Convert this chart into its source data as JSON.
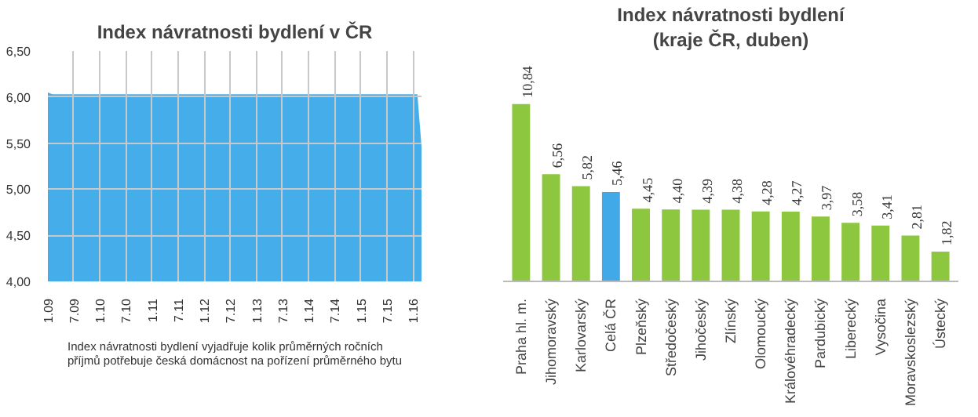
{
  "chart_data": [
    {
      "type": "area",
      "title": "Index návratnosti bydlení v ČR",
      "x": [
        "2009-01",
        "2009-02",
        "2016-02",
        "2016-03"
      ],
      "series": [
        {
          "color": "#45aeea",
          "values": [
            6.05,
            6.03,
            6.03,
            5.47
          ]
        }
      ],
      "xlim": [
        "2009-01",
        "2016-03"
      ],
      "xticks": [
        {
          "value": "2009-01",
          "label": "1.09"
        },
        {
          "value": "2009-07",
          "label": "7.09"
        },
        {
          "value": "2010-01",
          "label": "1.10"
        },
        {
          "value": "2010-07",
          "label": "7.10"
        },
        {
          "value": "2011-01",
          "label": "1.11"
        },
        {
          "value": "2011-07",
          "label": "7.11"
        },
        {
          "value": "2012-01",
          "label": "1.12"
        },
        {
          "value": "2012-07",
          "label": "7.12"
        },
        {
          "value": "2013-01",
          "label": "1.13"
        },
        {
          "value": "2013-07",
          "label": "7.13"
        },
        {
          "value": "2014-01",
          "label": "1.14"
        },
        {
          "value": "2014-07",
          "label": "7.14"
        },
        {
          "value": "2015-01",
          "label": "1.15"
        },
        {
          "value": "2015-07",
          "label": "7.15"
        },
        {
          "value": "2016-01",
          "label": "1.16"
        }
      ],
      "ylim": [
        4.0,
        6.5
      ],
      "yticks": [
        {
          "value": 4.0,
          "label": "4,00"
        },
        {
          "value": 4.5,
          "label": "4,50"
        },
        {
          "value": 5.0,
          "label": "5,00"
        },
        {
          "value": 5.5,
          "label": "5,50"
        },
        {
          "value": 6.0,
          "label": "6,00"
        },
        {
          "value": 6.5,
          "label": "6,50"
        }
      ],
      "grid": true,
      "annotations": [
        "Index návratnosti bydlení vyjadřuje kolik průměrných ročních příjmů potřebuje česká domácnost na pořízení průměrného bytu"
      ]
    },
    {
      "type": "bar",
      "title": "Index návratnosti bydlení",
      "subtitle": "(kraje ČR, duben)",
      "categories": [
        "Praha hl. m.",
        "Jihomoravský",
        "Karlovarský",
        "Celá ČR",
        "Plzeňský",
        "Středočeský",
        "Jihočeský",
        "Zlínský",
        "Olomoucký",
        "Královéhradecký",
        "Pardubický",
        "Liberecký",
        "Vysočina",
        "Moravskoslezský",
        "Ústecký"
      ],
      "values": [
        10.84,
        6.56,
        5.82,
        5.46,
        4.45,
        4.4,
        4.39,
        4.38,
        4.28,
        4.27,
        3.97,
        3.58,
        3.41,
        2.81,
        1.82
      ],
      "colors": [
        "#8dc63f",
        "#8dc63f",
        "#8dc63f",
        "#41a9e8",
        "#8dc63f",
        "#8dc63f",
        "#8dc63f",
        "#8dc63f",
        "#8dc63f",
        "#8dc63f",
        "#8dc63f",
        "#8dc63f",
        "#8dc63f",
        "#8dc63f",
        "#8dc63f"
      ],
      "value_labels": [
        "10,84",
        "6,56",
        "5,82",
        "5,46",
        "4,45",
        "4,40",
        "4,39",
        "4,38",
        "4,28",
        "4,27",
        "3,97",
        "3,58",
        "3,41",
        "2,81",
        "1,82"
      ]
    }
  ]
}
